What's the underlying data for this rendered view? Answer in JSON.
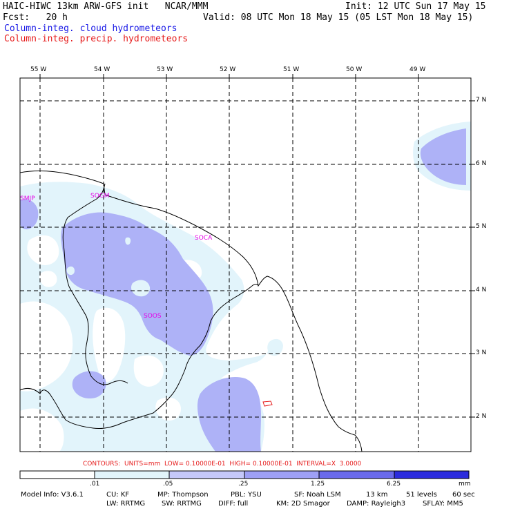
{
  "header": {
    "line1_left": "HAIC-HIWC 13km ARW-GFS init   NCAR/MMM",
    "line1_right": "Init: 12 UTC Sun 17 May 15",
    "line2_left": "Fcst:   20 h",
    "line2_right": "Valid: 08 UTC Mon 18 May 15 (05 LST Mon 18 May 15)",
    "line3": "Column-integ. cloud hydrometeors",
    "line4": "Column-integ. precip. hydrometeors",
    "line3_color": "#1a1ae6",
    "line4_color": "#e61a1a"
  },
  "map": {
    "lon_labels": [
      "55 W",
      "54 W",
      "53 W",
      "52 W",
      "51 W",
      "50 W",
      "49 W"
    ],
    "lat_labels": [
      "7 N",
      "6 N",
      "5 N",
      "4 N",
      "3 N",
      "2 N"
    ],
    "stations": [
      "SMJP",
      "SOGM",
      "SOCA",
      "SOOS"
    ]
  },
  "contour_info": "CONTOURS:  UNITS=mm  LOW= 0.10000E-01  HIGH= 0.10000E-01  INTERVAL=X  3.0000",
  "colorbar": {
    "ticks": [
      ".01",
      ".05",
      ".25",
      "1.25",
      "6.25"
    ],
    "unit": "mm",
    "colors": [
      "#ffffff",
      "#e2f4fb",
      "#c5c8fa",
      "#9ea0f5",
      "#6a6aec",
      "#2c2cdd"
    ]
  },
  "footer": {
    "line1": [
      "Model Info: V3.6.1",
      "CU: KF",
      "MP: Thompson",
      "PBL: YSU",
      "SF: Noah LSM",
      "13 km",
      "51 levels",
      "60 sec"
    ],
    "line2": [
      "LW: RRTMG",
      "SW: RRTMG",
      "DIFF: full",
      "KM: 2D Smagor",
      "DAMP: Rayleigh3",
      "SFLAY: MM5"
    ]
  }
}
